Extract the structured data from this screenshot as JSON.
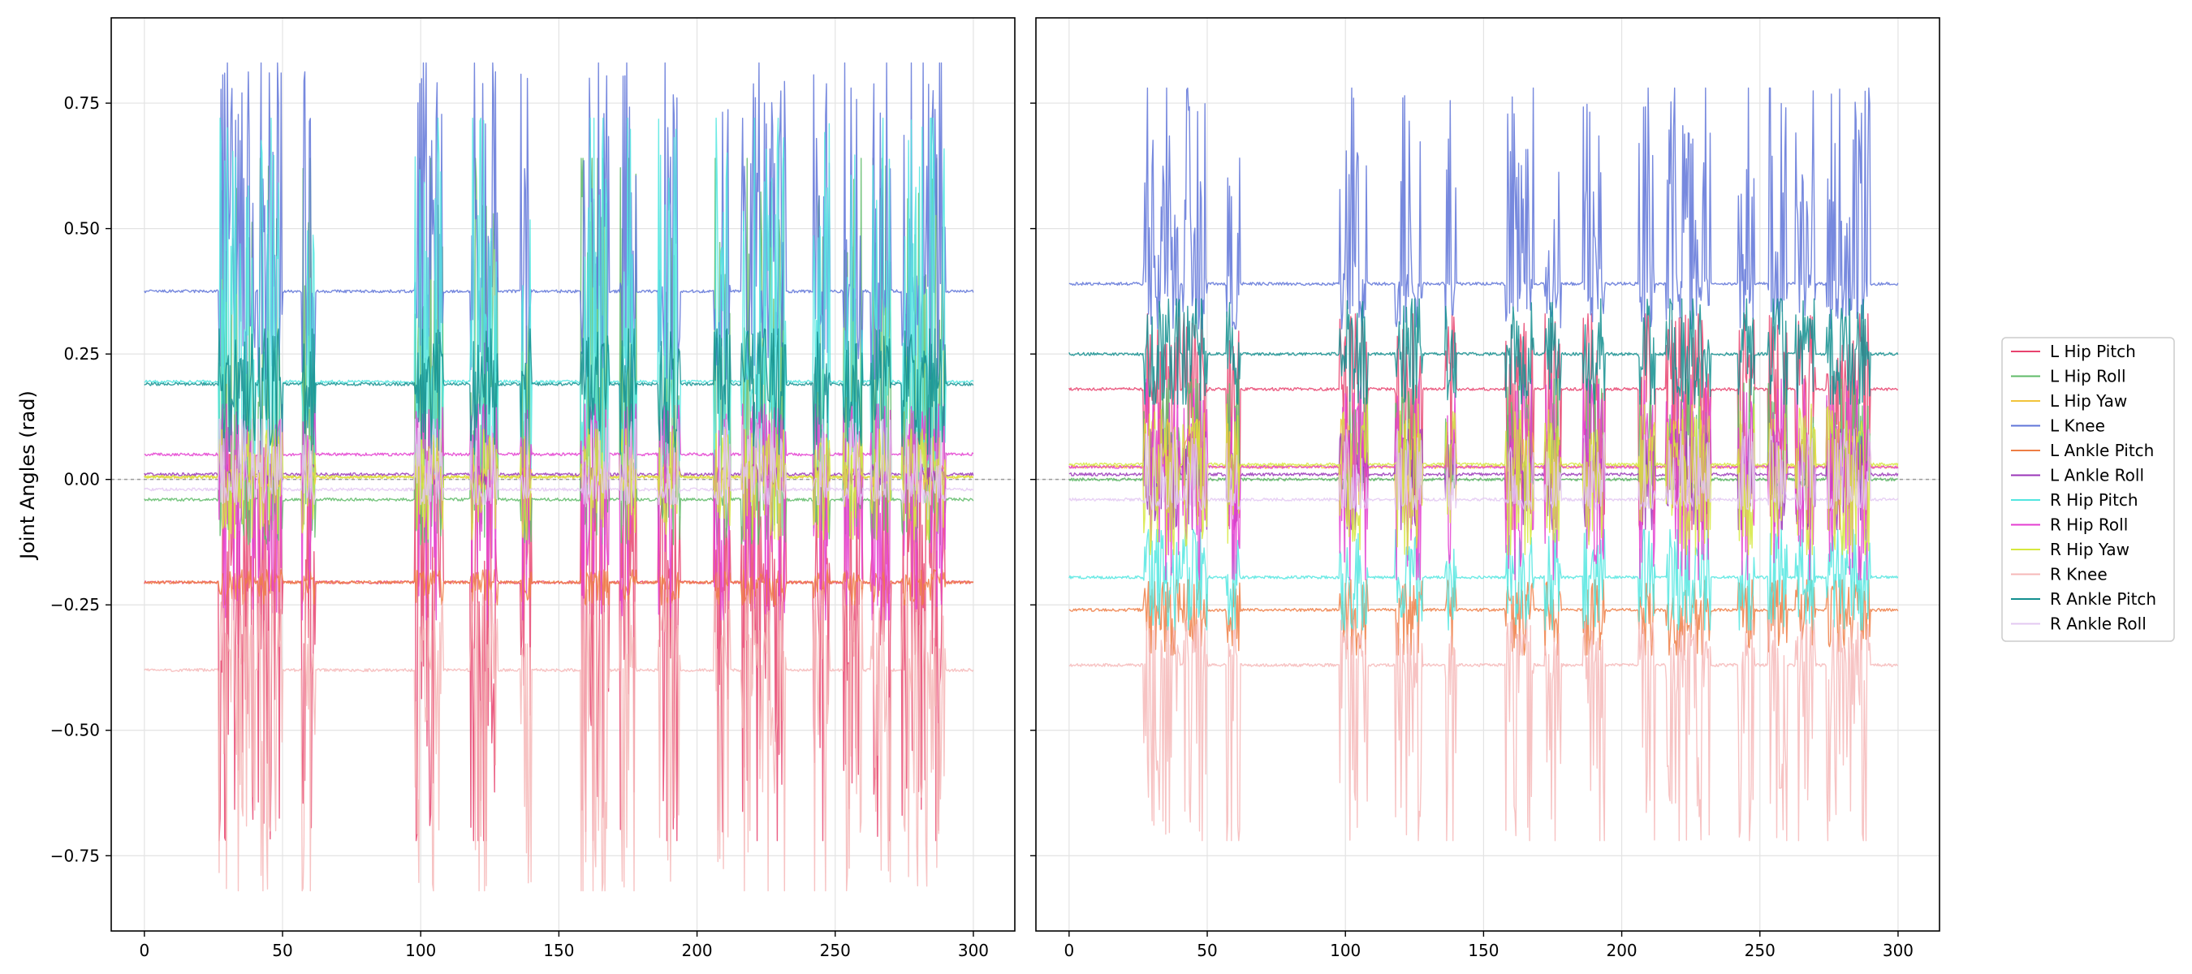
{
  "chart_data": {
    "type": "line",
    "ylabel": "Joint Angles (rad)",
    "xlim": [
      -12,
      315
    ],
    "ylim": [
      -0.9,
      0.92
    ],
    "xticks": [
      0,
      50,
      100,
      150,
      200,
      250,
      300
    ],
    "yticks": [
      -0.75,
      -0.5,
      -0.25,
      0.0,
      0.25,
      0.5,
      0.75
    ],
    "xtick_labels": [
      "0",
      "50",
      "100",
      "150",
      "200",
      "250",
      "300"
    ],
    "ytick_labels": [
      "−0.75",
      "−0.50",
      "−0.25",
      "0.00",
      "0.25",
      "0.50",
      "0.75"
    ],
    "grid": true,
    "zero_reference_line": 0.0,
    "legend_position": "right",
    "active_intervals": [
      [
        27,
        34
      ],
      [
        34,
        40
      ],
      [
        41,
        50
      ],
      [
        57,
        62
      ],
      [
        98,
        108
      ],
      [
        118,
        128
      ],
      [
        136,
        140
      ],
      [
        158,
        168
      ],
      [
        172,
        178
      ],
      [
        186,
        194
      ],
      [
        206,
        212
      ],
      [
        216,
        232
      ],
      [
        242,
        248
      ],
      [
        253,
        260
      ],
      [
        263,
        270
      ],
      [
        274,
        290
      ]
    ],
    "series": [
      {
        "name": "L Hip Pitch",
        "color": "#e8436e",
        "rest": [
          -0.205,
          0.18
        ],
        "lo": [
          -0.72,
          -0.1
        ],
        "hi": [
          0.05,
          0.33
        ]
      },
      {
        "name": "L Hip Roll",
        "color": "#5fbb68",
        "rest": [
          -0.04,
          0.0
        ],
        "lo": [
          -0.13,
          -0.02
        ],
        "hi": [
          0.64,
          0.2
        ]
      },
      {
        "name": "L Hip Yaw",
        "color": "#f2c43a",
        "rest": [
          0.005,
          0.025
        ],
        "lo": [
          -0.02,
          -0.05
        ],
        "hi": [
          0.03,
          0.12
        ]
      },
      {
        "name": "L Knee",
        "color": "#5f74d8",
        "rest": [
          0.375,
          0.39
        ],
        "lo": [
          0.2,
          0.3
        ],
        "hi": [
          0.83,
          0.78
        ]
      },
      {
        "name": "L Ankle Pitch",
        "color": "#ee7e45",
        "rest": [
          -0.205,
          -0.26
        ],
        "lo": [
          -0.25,
          -0.35
        ],
        "hi": [
          -0.18,
          -0.2
        ]
      },
      {
        "name": "L Ankle Roll",
        "color": "#9a36b8",
        "rest": [
          0.01,
          0.01
        ],
        "lo": [
          -0.01,
          -0.1
        ],
        "hi": [
          0.03,
          0.1
        ]
      },
      {
        "name": "R Hip Pitch",
        "color": "#52e6e0",
        "rest": [
          0.195,
          -0.195
        ],
        "lo": [
          0.0,
          -0.3
        ],
        "hi": [
          0.72,
          -0.1
        ]
      },
      {
        "name": "R Hip Roll",
        "color": "#e43ed0",
        "rest": [
          0.05,
          0.025
        ],
        "lo": [
          -0.28,
          -0.2
        ],
        "hi": [
          0.15,
          0.2
        ]
      },
      {
        "name": "R Hip Yaw",
        "color": "#d6e83e",
        "rest": [
          0.005,
          0.03
        ],
        "lo": [
          -0.12,
          -0.15
        ],
        "hi": [
          0.1,
          0.15
        ]
      },
      {
        "name": "R Knee",
        "color": "#f6b8b8",
        "rest": [
          -0.38,
          -0.37
        ],
        "lo": [
          -0.82,
          -0.72
        ],
        "hi": [
          -0.22,
          -0.28
        ]
      },
      {
        "name": "R Ankle Pitch",
        "color": "#138f8f",
        "rest": [
          0.19,
          0.25
        ],
        "lo": [
          0.05,
          0.15
        ],
        "hi": [
          0.3,
          0.36
        ]
      },
      {
        "name": "R Ankle Roll",
        "color": "#e3c8f2",
        "rest": [
          -0.02,
          -0.04
        ],
        "lo": [
          -0.05,
          -0.06
        ],
        "hi": [
          0.12,
          0.1
        ]
      }
    ]
  }
}
